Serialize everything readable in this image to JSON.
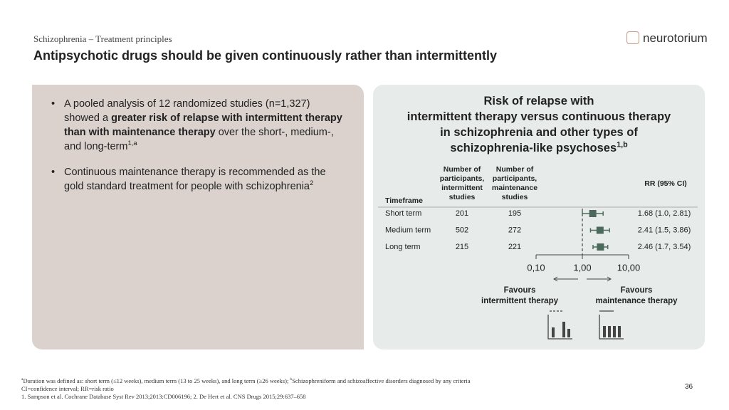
{
  "header": {
    "section": "Schizophrenia – Treatment principles",
    "title": "Antipsychotic drugs should be given continuously rather than intermittently",
    "logo": "neurotorium"
  },
  "bullets": [
    [
      {
        "text": "A pooled analysis of 12 randomized studies (n=1,327) showed a "
      },
      {
        "text": "greater risk of relapse with intermittent therapy than with maintenance therapy",
        "bold": true
      },
      {
        "text": " over the short-, medium-, and long-term"
      },
      {
        "text": "1,a",
        "sup": true
      }
    ],
    [
      {
        "text": "Continuous maintenance therapy is recommended as the gold standard treatment for people with schizophrenia"
      },
      {
        "text": "2",
        "sup": true
      }
    ]
  ],
  "forest_plot": {
    "title_lines": [
      "Risk of relapse with",
      "intermittent therapy versus continuous therapy",
      "in schizophrenia and other types of",
      "schizophrenia-like psychoses"
    ],
    "title_sup": "1,b",
    "columns": [
      "Timeframe",
      "Number of participants, intermittent studies",
      "Number of participants, maintenance studies",
      "RR (95% CI)"
    ],
    "rows": [
      {
        "timeframe": "Short term",
        "n_intermittent": 201,
        "n_maintenance": 195,
        "rr": 1.68,
        "ci": [
          1.0,
          2.81
        ],
        "label": "1.68 (1.0, 2.81)"
      },
      {
        "timeframe": "Medium term",
        "n_intermittent": 502,
        "n_maintenance": 272,
        "rr": 2.41,
        "ci": [
          1.5,
          3.86
        ],
        "label": "2.41 (1.5, 3.86)"
      },
      {
        "timeframe": "Long term",
        "n_intermittent": 215,
        "n_maintenance": 221,
        "rr": 2.46,
        "ci": [
          1.7,
          3.54
        ],
        "label": "2.46 (1.7, 3.54)"
      }
    ],
    "log_scale": true,
    "xlim": [
      0.1,
      10
    ],
    "xticks": [
      {
        "value": 0.1,
        "label": "0,10"
      },
      {
        "value": 1,
        "label": "1,00"
      },
      {
        "value": 10,
        "label": "10,00"
      }
    ],
    "reference": 1,
    "color": "#4b6a5c",
    "favours_left": [
      "Favours",
      "intermittent therapy"
    ],
    "favours_right": [
      "Favours",
      "maintenance therapy"
    ]
  },
  "footnotes": [
    [
      {
        "text": "a",
        "sup": true
      },
      {
        "text": "Duration was defined as: short term (≤12 weeks), medium term (13 to 25 weeks), and long term (≥26 weeks); "
      },
      {
        "text": "b",
        "sup": true
      },
      {
        "text": "Schizophreniform and schizoaffective disorders diagnosed by any criteria"
      }
    ],
    [
      {
        "text": "CI=confidence interval; RR=risk ratio"
      }
    ],
    [
      {
        "text": "1. Sampson et al. Cochrane Database Syst Rev 2013;2013:CD006196; 2. De Hert et al. CNS Drugs 2015;29:637–658"
      }
    ]
  ],
  "page_number": "36"
}
